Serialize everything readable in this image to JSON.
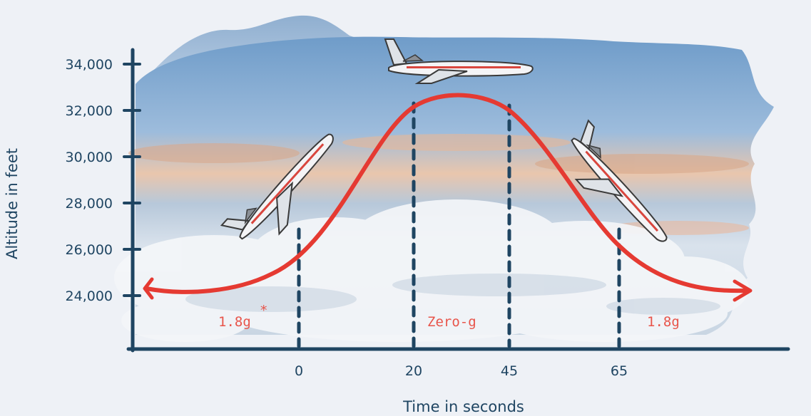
{
  "diagram": {
    "y_axis": {
      "title": "Altitude in feet",
      "ticks": [
        {
          "label": "34,000",
          "value": 34000
        },
        {
          "label": "32,000",
          "value": 32000
        },
        {
          "label": "30,000",
          "value": 30000
        },
        {
          "label": "28,000",
          "value": 28000
        },
        {
          "label": "26,000",
          "value": 26000
        },
        {
          "label": "24,000",
          "value": 24000
        }
      ]
    },
    "x_axis": {
      "title": "Time in seconds",
      "ticks": [
        {
          "label": "0",
          "value": 0
        },
        {
          "label": "20",
          "value": 20
        },
        {
          "label": "45",
          "value": 45
        },
        {
          "label": "65",
          "value": 65
        }
      ]
    },
    "phases": [
      {
        "label": "1.8g",
        "mark": "*"
      },
      {
        "label": "Zero-g"
      },
      {
        "label": "1.8g"
      }
    ],
    "colors": {
      "axis": "#1f4562",
      "curve": "#e53a32",
      "phase_text": "#e8544a",
      "sky_top": "#6f9cc9",
      "sky_sunset": "#f0c4a2",
      "clouds": "#f4f6f9",
      "background": "#eef1f6"
    },
    "icons": [
      "aircraft-climbing-icon",
      "aircraft-level-icon",
      "aircraft-descending-icon"
    ]
  }
}
